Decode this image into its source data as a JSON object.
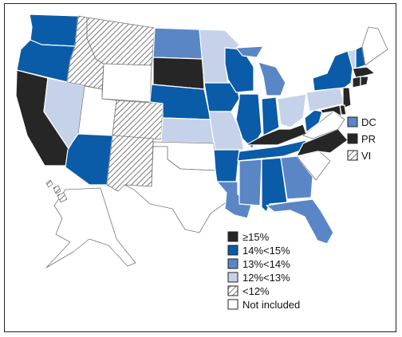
{
  "legend": {
    "items": [
      {
        "label": "≥15%",
        "key": "k1"
      },
      {
        "label": "14%<15%",
        "key": "k2"
      },
      {
        "label": "13%<14%",
        "key": "k3"
      },
      {
        "label": "12%<13%",
        "key": "k4"
      },
      {
        "label": "<12%",
        "key": "k5"
      },
      {
        "label": "Not included",
        "key": "k6"
      }
    ]
  },
  "territories": [
    {
      "label": "DC",
      "key": "k3"
    },
    {
      "label": "PR",
      "key": "k1"
    },
    {
      "label": "VI",
      "key": "k5"
    }
  ],
  "colors": {
    "k1": "#262626",
    "k2": "#0a5ca8",
    "k3": "#5a86c6",
    "k4": "#c5d2ea",
    "k5": "hatch",
    "k6": "#ffffff"
  },
  "states": {
    "WA": "k2",
    "OR": "k2",
    "CA": "k1",
    "NV": "k4",
    "ID": "k5",
    "MT": "k5",
    "WY": "k6",
    "UT": "k6",
    "AZ": "k2",
    "CO": "k5",
    "NM": "k5",
    "ND": "k3",
    "SD": "k1",
    "NE": "k2",
    "KS": "k4",
    "OK": "k6",
    "TX": "k6",
    "MN": "k4",
    "IA": "k2",
    "MO": "k4",
    "AR": "k2",
    "LA": "k3",
    "WI": "k2",
    "IL": "k2",
    "MI": "k3",
    "IN": "k2",
    "OH": "k4",
    "KY": "k1",
    "TN": "k2",
    "MS": "k3",
    "AL": "k2",
    "GA": "k3",
    "FL": "k3",
    "SC": "k6",
    "NC": "k1",
    "VA": "k6",
    "WV": "k2",
    "PA": "k4",
    "NY": "k2",
    "VT": "k4",
    "NH": "k2",
    "ME": "k6",
    "MA": "k1",
    "CT": "k1",
    "RI": "k1",
    "NJ": "k1",
    "DE": "k1",
    "MD": "k1",
    "AK": "k6",
    "HI": "k5"
  }
}
